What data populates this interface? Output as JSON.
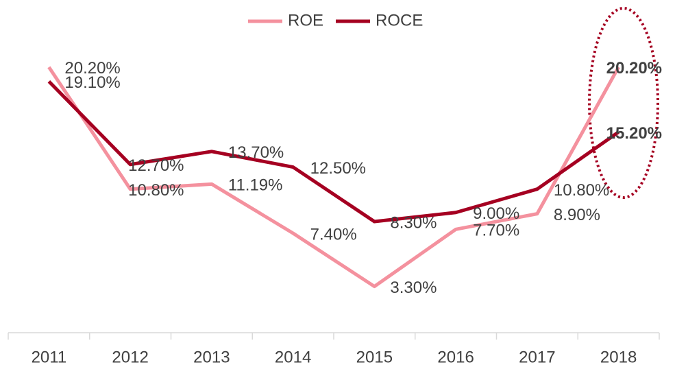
{
  "chart_data": {
    "type": "line",
    "categories": [
      "2011",
      "2012",
      "2013",
      "2014",
      "2015",
      "2016",
      "2017",
      "2018"
    ],
    "series": [
      {
        "name": "ROE",
        "color": "#f4919e",
        "values": [
          20.2,
          10.8,
          11.19,
          7.4,
          3.3,
          7.7,
          8.9,
          20.2
        ],
        "value_labels": [
          "20.20%",
          "10.80%",
          "11.19%",
          "7.40%",
          "3.30%",
          "7.70%",
          "8.90%",
          "20.20%"
        ]
      },
      {
        "name": "ROCE",
        "color": "#a50021",
        "values": [
          19.1,
          12.7,
          13.7,
          12.5,
          8.3,
          9.0,
          10.8,
          15.2
        ],
        "value_labels": [
          "19.10%",
          "12.70%",
          "13.70%",
          "12.50%",
          "8.30%",
          "9.00%",
          "10.80%",
          "15.20%"
        ]
      }
    ],
    "ylim": [
      0,
      24
    ],
    "legend": "top"
  }
}
